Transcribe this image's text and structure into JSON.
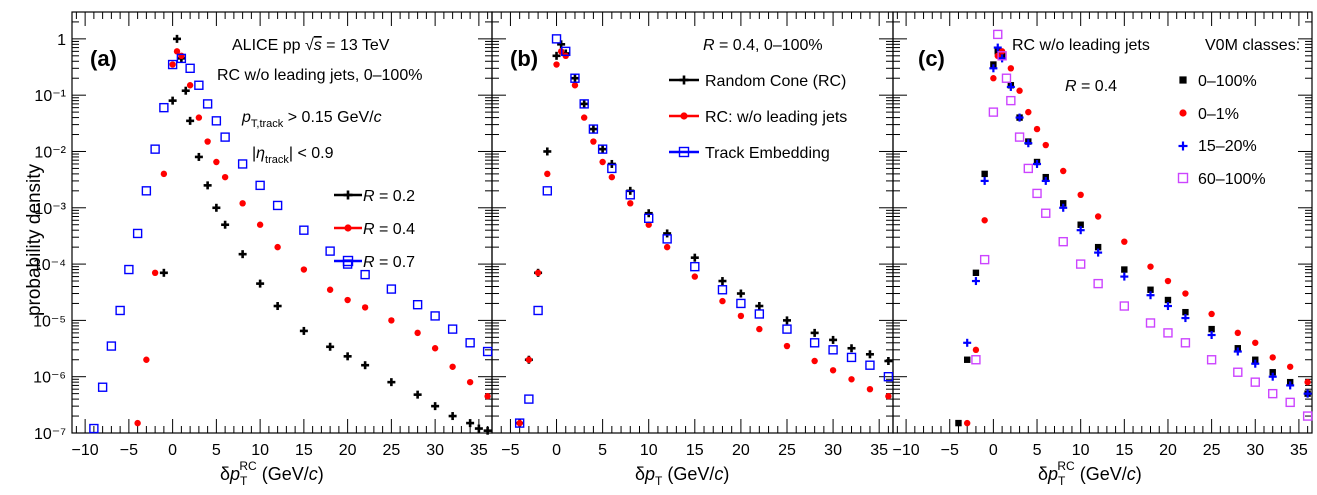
{
  "figure": {
    "ylabel": "probability density",
    "y_ticks": [
      "10⁻⁷",
      "10⁻⁶",
      "10⁻⁵",
      "10⁻⁴",
      "10⁻³",
      "10⁻²",
      "10⁻¹",
      "1"
    ],
    "x_ticks": [
      "−10",
      "−5",
      "0",
      "5",
      "10",
      "15",
      "20",
      "25",
      "30",
      "35"
    ]
  },
  "chart_data": [
    {
      "type": "scatter",
      "panel_label": "(a)",
      "xlabel": "δp_T^RC (GeV/c)",
      "ylabel": "probability density",
      "xlim": [
        -11.5,
        36.5
      ],
      "ylim": [
        1e-07,
        3
      ],
      "y_log": true,
      "annotations": [
        "ALICE pp √s = 13 TeV",
        "RC w/o leading jets, 0–100%",
        "p_T,track > 0.15 GeV/c",
        "|η_track| < 0.9"
      ],
      "series": [
        {
          "name": "R = 0.2",
          "color": "#000000",
          "marker": "cross",
          "x": [
            -1,
            0,
            0.5,
            1,
            1.5,
            2,
            3,
            4,
            5,
            6,
            8,
            10,
            12,
            15,
            18,
            20,
            22,
            25,
            28,
            30,
            32,
            34,
            35,
            36
          ],
          "y": [
            7e-05,
            0.08,
            1.0,
            0.45,
            0.12,
            0.035,
            0.008,
            0.0025,
            0.001,
            0.0005,
            0.00015,
            4.5e-05,
            1.8e-05,
            6.5e-06,
            3.4e-06,
            2.3e-06,
            1.6e-06,
            8e-07,
            4.8e-07,
            3e-07,
            2e-07,
            1.5e-07,
            1.2e-07,
            1.1e-07
          ]
        },
        {
          "name": "R = 0.4",
          "color": "#ff0000",
          "marker": "circle",
          "x": [
            -4,
            -3,
            -2,
            -1,
            0,
            0.5,
            1,
            2,
            3,
            4,
            5,
            6,
            8,
            10,
            12,
            15,
            18,
            20,
            22,
            25,
            28,
            30,
            32,
            34,
            36
          ],
          "y": [
            1.5e-07,
            2e-06,
            7e-05,
            0.004,
            0.35,
            0.6,
            0.5,
            0.15,
            0.04,
            0.015,
            0.0065,
            0.0035,
            0.0012,
            0.0005,
            0.0002,
            8e-05,
            3.5e-05,
            2.3e-05,
            1.7e-05,
            1e-05,
            6e-06,
            3.2e-06,
            1.5e-06,
            8e-07,
            4.5e-07
          ]
        },
        {
          "name": "R = 0.7",
          "color": "#0000ff",
          "marker": "open-square",
          "x": [
            -9,
            -8,
            -7,
            -6,
            -5,
            -4,
            -3,
            -2,
            -1,
            0,
            1,
            2,
            3,
            4,
            5,
            6,
            8,
            10,
            12,
            15,
            18,
            20,
            22,
            25,
            28,
            30,
            32,
            34,
            36
          ],
          "y": [
            1.2e-07,
            6.5e-07,
            3.5e-06,
            1.5e-05,
            8e-05,
            0.00035,
            0.002,
            0.011,
            0.06,
            0.35,
            0.45,
            0.3,
            0.15,
            0.07,
            0.035,
            0.018,
            0.006,
            0.0025,
            0.0011,
            0.0004,
            0.00017,
            0.0001,
            6.5e-05,
            3.6e-05,
            1.9e-05,
            1.2e-05,
            7e-06,
            4e-06,
            2.8e-06
          ]
        }
      ],
      "legend_position": "center-right"
    },
    {
      "type": "scatter",
      "panel_label": "(b)",
      "xlabel": "δp_T (GeV/c)",
      "xlim": [
        -7,
        36.5
      ],
      "ylim": [
        1e-07,
        3
      ],
      "y_log": true,
      "annotations": [
        "R = 0.4, 0–100%"
      ],
      "series": [
        {
          "name": "Random Cone (RC)",
          "color": "#000000",
          "marker": "cross",
          "x": [
            -4,
            -3,
            -2,
            -1,
            0,
            0.5,
            1,
            2,
            3,
            4,
            5,
            6,
            8,
            10,
            12,
            15,
            18,
            20,
            22,
            25,
            28,
            30,
            32,
            34,
            36
          ],
          "y": [
            1.5e-07,
            2e-06,
            7e-05,
            0.01,
            0.5,
            0.8,
            0.55,
            0.2,
            0.07,
            0.025,
            0.011,
            0.006,
            0.002,
            0.0008,
            0.00035,
            0.00013,
            5e-05,
            3e-05,
            1.8e-05,
            1e-05,
            6e-06,
            4.5e-06,
            3.2e-06,
            2.5e-06,
            1.9e-06
          ]
        },
        {
          "name": "RC: w/o leading jets",
          "color": "#ff0000",
          "marker": "circle",
          "x": [
            -4,
            -3,
            -2,
            -1,
            0,
            0.5,
            1,
            2,
            3,
            4,
            5,
            6,
            8,
            10,
            12,
            15,
            18,
            20,
            22,
            25,
            28,
            30,
            32,
            34,
            36
          ],
          "y": [
            1.5e-07,
            2e-06,
            7e-05,
            0.004,
            0.35,
            0.6,
            0.5,
            0.15,
            0.04,
            0.015,
            0.0065,
            0.0035,
            0.0012,
            0.0005,
            0.0002,
            6e-05,
            2.2e-05,
            1.2e-05,
            7e-06,
            3.5e-06,
            1.9e-06,
            1.3e-06,
            9e-07,
            6e-07,
            4.5e-07
          ]
        },
        {
          "name": "Track Embedding",
          "color": "#0000ff",
          "marker": "open-square",
          "x": [
            -4,
            -3,
            -2,
            -1,
            0,
            1,
            2,
            3,
            4,
            5,
            6,
            8,
            10,
            12,
            15,
            18,
            20,
            22,
            25,
            28,
            30,
            32,
            34,
            36
          ],
          "y": [
            1.5e-07,
            4e-07,
            1.5e-05,
            0.002,
            1.0,
            0.6,
            0.2,
            0.07,
            0.025,
            0.011,
            0.005,
            0.0017,
            0.00065,
            0.00028,
            9e-05,
            3.5e-05,
            2e-05,
            1.3e-05,
            7e-06,
            4e-06,
            3e-06,
            2.2e-06,
            1.6e-06,
            1e-06
          ]
        }
      ],
      "legend_position": "top-right"
    },
    {
      "type": "scatter",
      "panel_label": "(c)",
      "xlabel": "δp_T^RC (GeV/c)",
      "xlim": [
        -11.5,
        36.5
      ],
      "ylim": [
        1e-07,
        3
      ],
      "y_log": true,
      "annotations": [
        "RC w/o leading jets",
        "R = 0.4"
      ],
      "legend_title": "V0M classes:",
      "series": [
        {
          "name": "0–100%",
          "color": "#000000",
          "marker": "filled-square",
          "x": [
            -4,
            -3,
            -2,
            -1,
            0,
            0.5,
            1,
            2,
            3,
            4,
            5,
            6,
            8,
            10,
            12,
            15,
            18,
            20,
            22,
            25,
            28,
            30,
            32,
            34,
            36
          ],
          "y": [
            1.5e-07,
            2e-06,
            7e-05,
            0.004,
            0.35,
            0.6,
            0.5,
            0.15,
            0.04,
            0.015,
            0.0065,
            0.0035,
            0.0012,
            0.0005,
            0.0002,
            8e-05,
            3.5e-05,
            2.3e-05,
            1.4e-05,
            7e-06,
            3.2e-06,
            2e-06,
            1.2e-06,
            8e-07,
            5e-07
          ]
        },
        {
          "name": "0–1%",
          "color": "#ff0000",
          "marker": "circle",
          "x": [
            -3,
            -2,
            -1,
            0,
            0.5,
            1,
            2,
            3,
            4,
            5,
            6,
            8,
            10,
            12,
            15,
            18,
            20,
            22,
            25,
            28,
            30,
            32,
            34,
            36
          ],
          "y": [
            1.5e-07,
            3e-06,
            0.0006,
            0.2,
            0.5,
            0.6,
            0.3,
            0.12,
            0.05,
            0.025,
            0.013,
            0.0045,
            0.0017,
            0.0007,
            0.00025,
            9e-05,
            5e-05,
            3e-05,
            1.3e-05,
            6e-06,
            4e-06,
            2.2e-06,
            1.5e-06,
            8e-07
          ]
        },
        {
          "name": "15–20%",
          "color": "#0000ff",
          "marker": "plus",
          "x": [
            -3,
            -2,
            -1,
            0,
            0.5,
            1,
            2,
            3,
            4,
            5,
            6,
            8,
            10,
            12,
            15,
            18,
            20,
            22,
            25,
            28,
            30,
            32,
            34,
            36
          ],
          "y": [
            4e-06,
            5e-05,
            0.003,
            0.3,
            0.7,
            0.45,
            0.14,
            0.04,
            0.014,
            0.006,
            0.003,
            0.001,
            0.0004,
            0.00016,
            6e-05,
            2.8e-05,
            1.8e-05,
            1.1e-05,
            5.5e-06,
            2.8e-06,
            1.7e-06,
            1e-06,
            7e-07,
            5e-07
          ]
        },
        {
          "name": "60–100%",
          "color": "#cc44ff",
          "marker": "open-square",
          "x": [
            -2,
            -1,
            0,
            0.5,
            1,
            1.5,
            2,
            3,
            4,
            5,
            6,
            8,
            10,
            12,
            15,
            18,
            20,
            22,
            25,
            28,
            30,
            32,
            34,
            36
          ],
          "y": [
            2e-06,
            0.00012,
            0.05,
            1.2,
            0.5,
            0.2,
            0.08,
            0.018,
            0.005,
            0.0018,
            0.0008,
            0.00025,
            0.0001,
            4.5e-05,
            1.8e-05,
            9e-06,
            6e-06,
            4e-06,
            2e-06,
            1.2e-06,
            8e-07,
            5e-07,
            3.5e-07,
            2e-07
          ]
        }
      ],
      "legend_position": "top-right"
    }
  ],
  "text": {
    "a": {
      "label": "(a)",
      "ann1_pre": "ALICE pp ",
      "ann1_sqrt": "s",
      "ann1_post": " = 13 TeV",
      "ann2": "RC w/o leading jets, 0–100%",
      "ann3_p": "p",
      "ann3_sub": "T,track",
      "ann3_post": " > 0.15 GeV/",
      "ann3_c": "c",
      "ann4_pre": "|",
      "ann4_eta": "η",
      "ann4_sub": "track",
      "ann4_post": "| < 0.9",
      "leg": [
        {
          "R": "R",
          "eq": " = 0.2"
        },
        {
          "R": "R",
          "eq": " = 0.4"
        },
        {
          "R": "R",
          "eq": " = 0.7"
        }
      ],
      "xl_d": "δ",
      "xl_p": "p",
      "xl_T": "T",
      "xl_RC": "RC",
      "xl_rest": " (GeV/",
      "xl_c": "c",
      "xl_close": ")"
    },
    "b": {
      "label": "(b)",
      "ann_R": "R",
      "ann_rest": " = 0.4, 0–100%",
      "leg": [
        "Random Cone (RC)",
        "RC: w/o leading jets",
        "Track Embedding"
      ],
      "xl_d": "δ",
      "xl_p": "p",
      "xl_T": "T",
      "xl_rest": " (GeV/",
      "xl_c": "c",
      "xl_close": ")"
    },
    "c": {
      "label": "(c)",
      "ann1": "RC w/o leading jets",
      "legtitle": "V0M classes:",
      "ann2_R": "R",
      "ann2_rest": " = 0.4",
      "leg": [
        "0–100%",
        "0–1%",
        "15–20%",
        "60–100%"
      ],
      "xl_d": "δ",
      "xl_p": "p",
      "xl_T": "T",
      "xl_RC": "RC",
      "xl_rest": " (GeV/",
      "xl_c": "c",
      "xl_close": ")"
    }
  }
}
